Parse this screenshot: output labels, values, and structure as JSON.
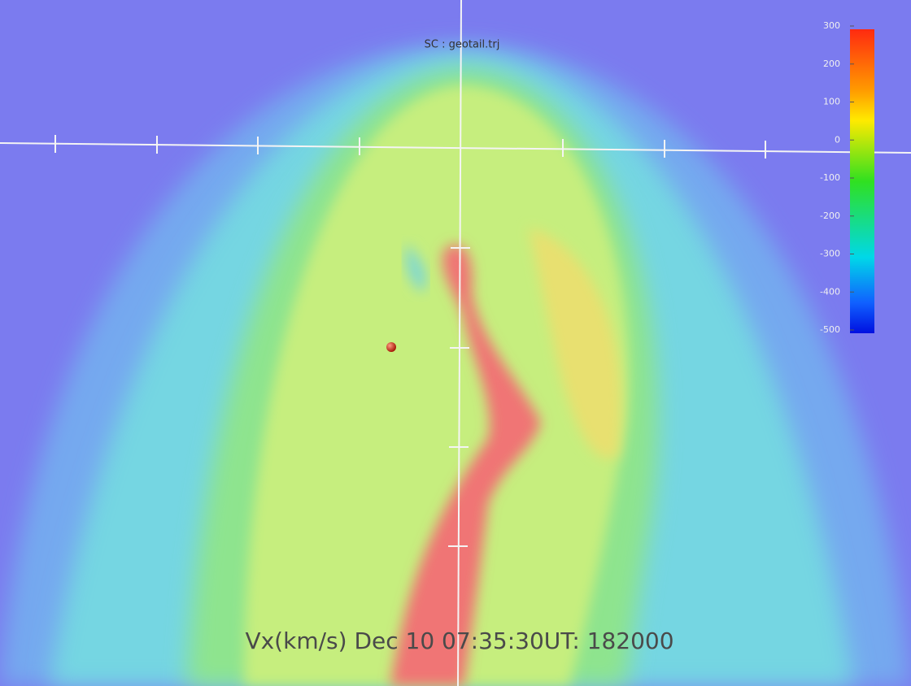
{
  "title": "SC : geotail.trj",
  "caption": "Vx(km/s) Dec 10 07:35:30UT: 182000",
  "colorbar": {
    "lim": [
      -500,
      300
    ],
    "ticks": [
      300,
      200,
      100,
      0,
      -100,
      -200,
      -300,
      -400,
      -500
    ]
  }
}
